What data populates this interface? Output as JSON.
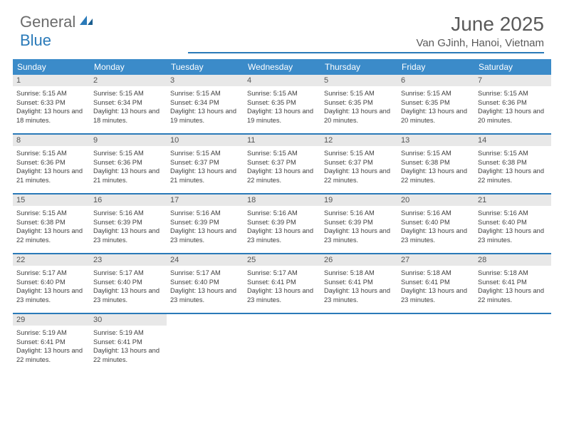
{
  "logo": {
    "general": "General",
    "blue": "Blue"
  },
  "title": "June 2025",
  "location": "Van GJinh, Hanoi, Vietnam",
  "colors": {
    "header_bar": "#3b8bc9",
    "accent": "#2a7ab9",
    "daynum_bg": "#e8e8e8",
    "text": "#404040"
  },
  "weekdays": [
    "Sunday",
    "Monday",
    "Tuesday",
    "Wednesday",
    "Thursday",
    "Friday",
    "Saturday"
  ],
  "weeks": [
    [
      {
        "n": "1",
        "sr": "5:15 AM",
        "ss": "6:33 PM",
        "dl": "13 hours and 18 minutes."
      },
      {
        "n": "2",
        "sr": "5:15 AM",
        "ss": "6:34 PM",
        "dl": "13 hours and 18 minutes."
      },
      {
        "n": "3",
        "sr": "5:15 AM",
        "ss": "6:34 PM",
        "dl": "13 hours and 19 minutes."
      },
      {
        "n": "4",
        "sr": "5:15 AM",
        "ss": "6:35 PM",
        "dl": "13 hours and 19 minutes."
      },
      {
        "n": "5",
        "sr": "5:15 AM",
        "ss": "6:35 PM",
        "dl": "13 hours and 20 minutes."
      },
      {
        "n": "6",
        "sr": "5:15 AM",
        "ss": "6:35 PM",
        "dl": "13 hours and 20 minutes."
      },
      {
        "n": "7",
        "sr": "5:15 AM",
        "ss": "6:36 PM",
        "dl": "13 hours and 20 minutes."
      }
    ],
    [
      {
        "n": "8",
        "sr": "5:15 AM",
        "ss": "6:36 PM",
        "dl": "13 hours and 21 minutes."
      },
      {
        "n": "9",
        "sr": "5:15 AM",
        "ss": "6:36 PM",
        "dl": "13 hours and 21 minutes."
      },
      {
        "n": "10",
        "sr": "5:15 AM",
        "ss": "6:37 PM",
        "dl": "13 hours and 21 minutes."
      },
      {
        "n": "11",
        "sr": "5:15 AM",
        "ss": "6:37 PM",
        "dl": "13 hours and 22 minutes."
      },
      {
        "n": "12",
        "sr": "5:15 AM",
        "ss": "6:37 PM",
        "dl": "13 hours and 22 minutes."
      },
      {
        "n": "13",
        "sr": "5:15 AM",
        "ss": "6:38 PM",
        "dl": "13 hours and 22 minutes."
      },
      {
        "n": "14",
        "sr": "5:15 AM",
        "ss": "6:38 PM",
        "dl": "13 hours and 22 minutes."
      }
    ],
    [
      {
        "n": "15",
        "sr": "5:15 AM",
        "ss": "6:38 PM",
        "dl": "13 hours and 22 minutes."
      },
      {
        "n": "16",
        "sr": "5:16 AM",
        "ss": "6:39 PM",
        "dl": "13 hours and 23 minutes."
      },
      {
        "n": "17",
        "sr": "5:16 AM",
        "ss": "6:39 PM",
        "dl": "13 hours and 23 minutes."
      },
      {
        "n": "18",
        "sr": "5:16 AM",
        "ss": "6:39 PM",
        "dl": "13 hours and 23 minutes."
      },
      {
        "n": "19",
        "sr": "5:16 AM",
        "ss": "6:39 PM",
        "dl": "13 hours and 23 minutes."
      },
      {
        "n": "20",
        "sr": "5:16 AM",
        "ss": "6:40 PM",
        "dl": "13 hours and 23 minutes."
      },
      {
        "n": "21",
        "sr": "5:16 AM",
        "ss": "6:40 PM",
        "dl": "13 hours and 23 minutes."
      }
    ],
    [
      {
        "n": "22",
        "sr": "5:17 AM",
        "ss": "6:40 PM",
        "dl": "13 hours and 23 minutes."
      },
      {
        "n": "23",
        "sr": "5:17 AM",
        "ss": "6:40 PM",
        "dl": "13 hours and 23 minutes."
      },
      {
        "n": "24",
        "sr": "5:17 AM",
        "ss": "6:40 PM",
        "dl": "13 hours and 23 minutes."
      },
      {
        "n": "25",
        "sr": "5:17 AM",
        "ss": "6:41 PM",
        "dl": "13 hours and 23 minutes."
      },
      {
        "n": "26",
        "sr": "5:18 AM",
        "ss": "6:41 PM",
        "dl": "13 hours and 23 minutes."
      },
      {
        "n": "27",
        "sr": "5:18 AM",
        "ss": "6:41 PM",
        "dl": "13 hours and 23 minutes."
      },
      {
        "n": "28",
        "sr": "5:18 AM",
        "ss": "6:41 PM",
        "dl": "13 hours and 22 minutes."
      }
    ],
    [
      {
        "n": "29",
        "sr": "5:19 AM",
        "ss": "6:41 PM",
        "dl": "13 hours and 22 minutes."
      },
      {
        "n": "30",
        "sr": "5:19 AM",
        "ss": "6:41 PM",
        "dl": "13 hours and 22 minutes."
      },
      null,
      null,
      null,
      null,
      null
    ]
  ],
  "labels": {
    "sunrise": "Sunrise:",
    "sunset": "Sunset:",
    "daylight": "Daylight:"
  }
}
